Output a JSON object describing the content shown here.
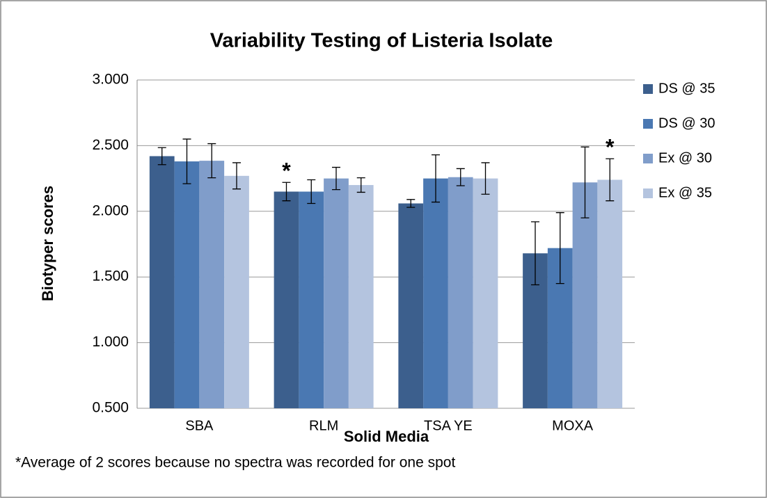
{
  "chart_data": {
    "type": "bar",
    "title": "Variability Testing of Listeria Isolate",
    "x_label": "Solid Media",
    "y_label": "Biotyper scores",
    "footnote": "*Average of 2 scores because no spectra was recorded for one spot",
    "categories": [
      "SBA",
      "RLM",
      "TSA YE",
      "MOXA"
    ],
    "series": [
      {
        "name": "DS @ 35",
        "color": "#3c5f8d",
        "values": [
          2.42,
          2.15,
          2.06,
          1.68
        ],
        "errors": [
          0.065,
          0.07,
          0.03,
          0.24
        ]
      },
      {
        "name": "DS @ 30",
        "color": "#4a78b2",
        "values": [
          2.38,
          2.15,
          2.25,
          1.72
        ],
        "errors": [
          0.17,
          0.09,
          0.18,
          0.27
        ]
      },
      {
        "name": "Ex @ 30",
        "color": "#809dca",
        "values": [
          2.385,
          2.25,
          2.26,
          2.22
        ],
        "errors": [
          0.13,
          0.085,
          0.065,
          0.27
        ]
      },
      {
        "name": "Ex @ 35",
        "color": "#b4c4df",
        "values": [
          2.27,
          2.2,
          2.25,
          2.24
        ],
        "errors": [
          0.1,
          0.055,
          0.12,
          0.16
        ]
      }
    ],
    "annotations": [
      {
        "text": "*",
        "series": 0,
        "category": 1
      },
      {
        "text": "*",
        "series": 3,
        "category": 3
      }
    ],
    "ylim": [
      0.5,
      3.0
    ],
    "yticks": [
      {
        "value": 0.5,
        "label": "0.500"
      },
      {
        "value": 1.0,
        "label": "1.000"
      },
      {
        "value": 1.5,
        "label": "1.500"
      },
      {
        "value": 2.0,
        "label": "2.000"
      },
      {
        "value": 2.5,
        "label": "2.500"
      },
      {
        "value": 3.0,
        "label": "3.000"
      }
    ],
    "grid": true,
    "legend": "right"
  }
}
